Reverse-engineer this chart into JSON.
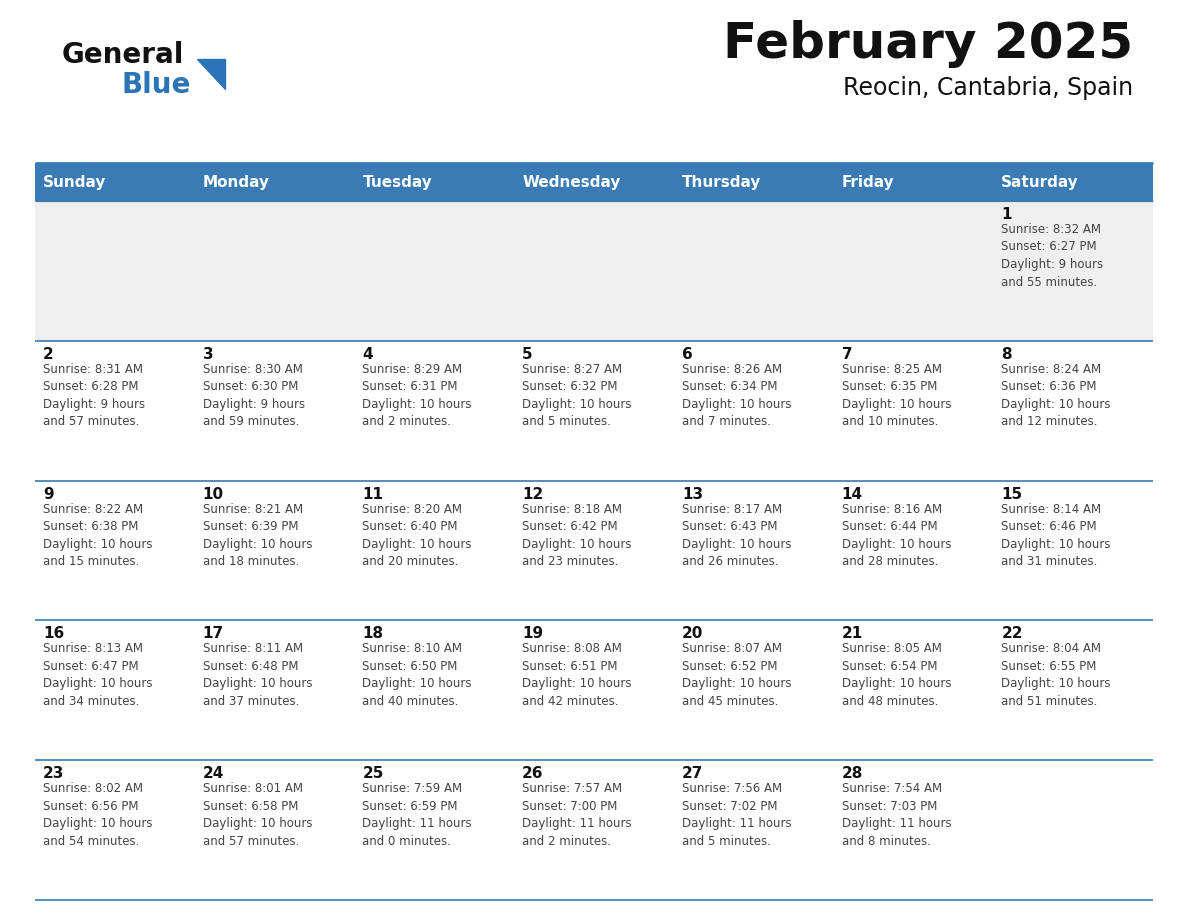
{
  "title": "February 2025",
  "subtitle": "Reocin, Cantabria, Spain",
  "header_bg": "#3a7ab5",
  "header_text": "#ffffff",
  "row1_bg": "#efefef",
  "row_bg": "#ffffff",
  "separator_color": "#3a7ab5",
  "day_headers": [
    "Sunday",
    "Monday",
    "Tuesday",
    "Wednesday",
    "Thursday",
    "Friday",
    "Saturday"
  ],
  "calendar": [
    [
      null,
      null,
      null,
      null,
      null,
      null,
      {
        "day": "1",
        "sunrise": "8:32 AM",
        "sunset": "6:27 PM",
        "daylight": "9 hours\nand 55 minutes."
      }
    ],
    [
      {
        "day": "2",
        "sunrise": "8:31 AM",
        "sunset": "6:28 PM",
        "daylight": "9 hours\nand 57 minutes."
      },
      {
        "day": "3",
        "sunrise": "8:30 AM",
        "sunset": "6:30 PM",
        "daylight": "9 hours\nand 59 minutes."
      },
      {
        "day": "4",
        "sunrise": "8:29 AM",
        "sunset": "6:31 PM",
        "daylight": "10 hours\nand 2 minutes."
      },
      {
        "day": "5",
        "sunrise": "8:27 AM",
        "sunset": "6:32 PM",
        "daylight": "10 hours\nand 5 minutes."
      },
      {
        "day": "6",
        "sunrise": "8:26 AM",
        "sunset": "6:34 PM",
        "daylight": "10 hours\nand 7 minutes."
      },
      {
        "day": "7",
        "sunrise": "8:25 AM",
        "sunset": "6:35 PM",
        "daylight": "10 hours\nand 10 minutes."
      },
      {
        "day": "8",
        "sunrise": "8:24 AM",
        "sunset": "6:36 PM",
        "daylight": "10 hours\nand 12 minutes."
      }
    ],
    [
      {
        "day": "9",
        "sunrise": "8:22 AM",
        "sunset": "6:38 PM",
        "daylight": "10 hours\nand 15 minutes."
      },
      {
        "day": "10",
        "sunrise": "8:21 AM",
        "sunset": "6:39 PM",
        "daylight": "10 hours\nand 18 minutes."
      },
      {
        "day": "11",
        "sunrise": "8:20 AM",
        "sunset": "6:40 PM",
        "daylight": "10 hours\nand 20 minutes."
      },
      {
        "day": "12",
        "sunrise": "8:18 AM",
        "sunset": "6:42 PM",
        "daylight": "10 hours\nand 23 minutes."
      },
      {
        "day": "13",
        "sunrise": "8:17 AM",
        "sunset": "6:43 PM",
        "daylight": "10 hours\nand 26 minutes."
      },
      {
        "day": "14",
        "sunrise": "8:16 AM",
        "sunset": "6:44 PM",
        "daylight": "10 hours\nand 28 minutes."
      },
      {
        "day": "15",
        "sunrise": "8:14 AM",
        "sunset": "6:46 PM",
        "daylight": "10 hours\nand 31 minutes."
      }
    ],
    [
      {
        "day": "16",
        "sunrise": "8:13 AM",
        "sunset": "6:47 PM",
        "daylight": "10 hours\nand 34 minutes."
      },
      {
        "day": "17",
        "sunrise": "8:11 AM",
        "sunset": "6:48 PM",
        "daylight": "10 hours\nand 37 minutes."
      },
      {
        "day": "18",
        "sunrise": "8:10 AM",
        "sunset": "6:50 PM",
        "daylight": "10 hours\nand 40 minutes."
      },
      {
        "day": "19",
        "sunrise": "8:08 AM",
        "sunset": "6:51 PM",
        "daylight": "10 hours\nand 42 minutes."
      },
      {
        "day": "20",
        "sunrise": "8:07 AM",
        "sunset": "6:52 PM",
        "daylight": "10 hours\nand 45 minutes."
      },
      {
        "day": "21",
        "sunrise": "8:05 AM",
        "sunset": "6:54 PM",
        "daylight": "10 hours\nand 48 minutes."
      },
      {
        "day": "22",
        "sunrise": "8:04 AM",
        "sunset": "6:55 PM",
        "daylight": "10 hours\nand 51 minutes."
      }
    ],
    [
      {
        "day": "23",
        "sunrise": "8:02 AM",
        "sunset": "6:56 PM",
        "daylight": "10 hours\nand 54 minutes."
      },
      {
        "day": "24",
        "sunrise": "8:01 AM",
        "sunset": "6:58 PM",
        "daylight": "10 hours\nand 57 minutes."
      },
      {
        "day": "25",
        "sunrise": "7:59 AM",
        "sunset": "6:59 PM",
        "daylight": "11 hours\nand 0 minutes."
      },
      {
        "day": "26",
        "sunrise": "7:57 AM",
        "sunset": "7:00 PM",
        "daylight": "11 hours\nand 2 minutes."
      },
      {
        "day": "27",
        "sunrise": "7:56 AM",
        "sunset": "7:02 PM",
        "daylight": "11 hours\nand 5 minutes."
      },
      {
        "day": "28",
        "sunrise": "7:54 AM",
        "sunset": "7:03 PM",
        "daylight": "11 hours\nand 8 minutes."
      },
      null
    ]
  ],
  "logo_general_color": "#111111",
  "logo_blue_color": "#2a74b8",
  "cell_text_color": "#444444",
  "day_num_color": "#111111",
  "title_fontsize": 36,
  "subtitle_fontsize": 17,
  "header_fontsize": 11,
  "daynum_fontsize": 11,
  "cell_fontsize": 8.5
}
